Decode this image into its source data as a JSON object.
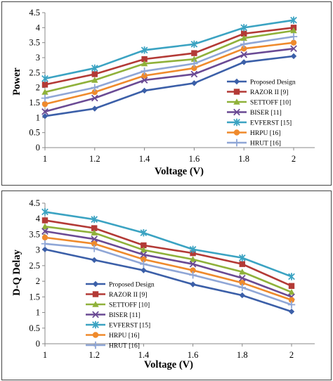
{
  "chart_data": [
    {
      "type": "line",
      "title": "",
      "xlabel": "Voltage (V)",
      "ylabel": "Power",
      "x": [
        1,
        1.2,
        1.4,
        1.6,
        1.8,
        2
      ],
      "x_tick_labels": [
        "1",
        "1.2",
        "1.4",
        "1.6",
        "1.8",
        "2"
      ],
      "xlim": [
        1,
        2
      ],
      "ylim": [
        0,
        4.5
      ],
      "y_ticks": [
        0,
        0.5,
        1,
        1.5,
        2,
        2.5,
        3,
        3.5,
        4,
        4.5
      ],
      "y_tick_labels": [
        "0",
        "0.5",
        "1",
        "1.5",
        "2",
        "2.5",
        "3",
        "3.5",
        "4",
        "4.5"
      ],
      "grid": false,
      "legend_position": "lower-right",
      "series": [
        {
          "name": "Proposed Design",
          "color": "#3b5fa8",
          "marker": "diamond",
          "values": [
            1.05,
            1.3,
            1.9,
            2.15,
            2.85,
            3.05
          ]
        },
        {
          "name": "RAZOR II [9]",
          "color": "#b33a36",
          "marker": "square",
          "values": [
            2.1,
            2.45,
            2.95,
            3.15,
            3.8,
            4.0
          ]
        },
        {
          "name": "SETTOFF [10]",
          "color": "#8fb13a",
          "marker": "triangle",
          "values": [
            1.85,
            2.25,
            2.8,
            2.95,
            3.65,
            3.9
          ]
        },
        {
          "name": "BISER [11]",
          "color": "#6a4a94",
          "marker": "x",
          "values": [
            1.2,
            1.65,
            2.25,
            2.45,
            3.1,
            3.3
          ]
        },
        {
          "name": "EVFERST [15]",
          "color": "#3ba3c2",
          "marker": "star",
          "values": [
            2.3,
            2.65,
            3.25,
            3.45,
            4.0,
            4.25
          ]
        },
        {
          "name": "HRPU [16]",
          "color": "#ef8a2c",
          "marker": "circle",
          "values": [
            1.45,
            1.85,
            2.4,
            2.65,
            3.3,
            3.5
          ]
        },
        {
          "name": "HRUT [16]",
          "color": "#8fa6d6",
          "marker": "plus",
          "values": [
            1.65,
            2.0,
            2.55,
            2.8,
            3.45,
            3.7
          ]
        }
      ]
    },
    {
      "type": "line",
      "title": "",
      "xlabel": "Voltage (V)",
      "ylabel": "D-Q Delay",
      "x": [
        1,
        1.2,
        1.4,
        1.6,
        1.8,
        2
      ],
      "x_tick_labels": [
        "1",
        "1.2",
        "1.4",
        "1.6",
        "1.8",
        "2"
      ],
      "xlim": [
        1,
        2
      ],
      "ylim": [
        0,
        4.5
      ],
      "y_ticks": [
        0,
        0.5,
        1,
        1.5,
        2,
        2.5,
        3,
        3.5,
        4,
        4.5
      ],
      "y_tick_labels": [
        "0",
        "0.5",
        "1",
        "1.5",
        "2",
        "2.5",
        "3",
        "3.5",
        "4",
        "4.5"
      ],
      "grid": false,
      "legend_position": "lower-left",
      "series": [
        {
          "name": "Proposed Design",
          "color": "#3b5fa8",
          "marker": "diamond",
          "values": [
            3.02,
            2.68,
            2.35,
            1.9,
            1.55,
            1.03
          ]
        },
        {
          "name": "RAZOR II [9]",
          "color": "#b33a36",
          "marker": "square",
          "values": [
            3.95,
            3.7,
            3.15,
            2.9,
            2.55,
            1.85
          ]
        },
        {
          "name": "SETTOFF [10]",
          "color": "#8fb13a",
          "marker": "triangle",
          "values": [
            3.75,
            3.55,
            3.0,
            2.7,
            2.3,
            1.65
          ]
        },
        {
          "name": "BISER [11]",
          "color": "#6a4a94",
          "marker": "x",
          "values": [
            3.6,
            3.35,
            2.85,
            2.55,
            2.1,
            1.5
          ]
        },
        {
          "name": "EVFERST [15]",
          "color": "#3ba3c2",
          "marker": "star",
          "values": [
            4.22,
            3.98,
            3.55,
            3.02,
            2.75,
            2.15
          ]
        },
        {
          "name": "HRPU [16]",
          "color": "#ef8a2c",
          "marker": "circle",
          "values": [
            3.4,
            3.2,
            2.7,
            2.35,
            1.95,
            1.4
          ]
        },
        {
          "name": "HRUT [16]",
          "color": "#8fa6d6",
          "marker": "plus",
          "values": [
            3.2,
            3.05,
            2.55,
            2.2,
            1.8,
            1.25
          ]
        }
      ]
    }
  ]
}
